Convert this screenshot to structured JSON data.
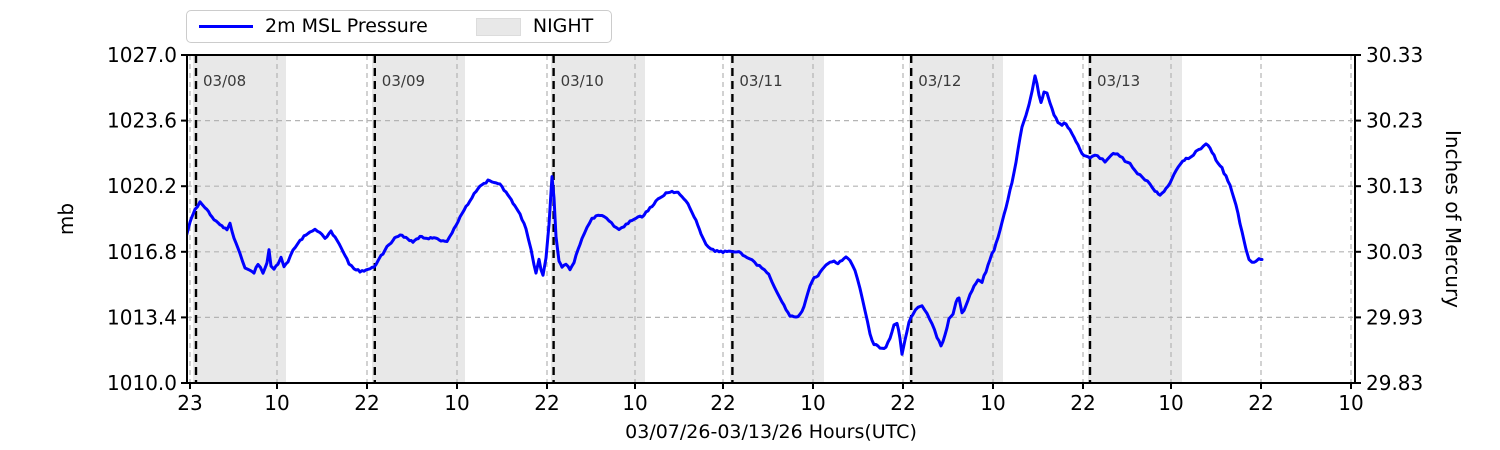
{
  "chart_data": {
    "type": "line",
    "title": "",
    "xlabel": "03/07/26-03/13/26  Hours(UTC)",
    "x_unit": "hours since 03/08 00:00 UTC",
    "ylabel_left": "mb",
    "ylabel_right": "Inches of Mercury",
    "xlim": [
      -1.21,
      155.57
    ],
    "ylim_left": [
      1010.0,
      1027.0
    ],
    "ylim_right": [
      29.83,
      30.33
    ],
    "grid": true,
    "colors": {
      "line": "#0000ff",
      "night": "#e8e8e8",
      "grid": "#b4b4b4",
      "spine": "#000000",
      "day_label": "#3a3a3a"
    },
    "y_left_ticks": [
      1010.0,
      1013.4,
      1016.8,
      1020.2,
      1023.6,
      1027.0
    ],
    "y_left_tick_labels": [
      "1010.0",
      "1013.4",
      "1016.8",
      "1020.2",
      "1023.6",
      "1027.0"
    ],
    "y_right_ticks": [
      29.83,
      29.93,
      30.03,
      30.13,
      30.23,
      30.33
    ],
    "y_right_tick_labels": [
      "29.83",
      "29.93",
      "30.03",
      "30.13",
      "30.23",
      "30.33"
    ],
    "x_ticks": [
      {
        "t": -0.81,
        "label": "23"
      },
      {
        "t": 10.87,
        "label": "10"
      },
      {
        "t": 22.95,
        "label": "22"
      },
      {
        "t": 35.03,
        "label": "10"
      },
      {
        "t": 47.11,
        "label": "22"
      },
      {
        "t": 58.93,
        "label": "10"
      },
      {
        "t": 70.74,
        "label": "22"
      },
      {
        "t": 82.82,
        "label": "10"
      },
      {
        "t": 94.9,
        "label": "22"
      },
      {
        "t": 106.98,
        "label": "10"
      },
      {
        "t": 119.06,
        "label": "22"
      },
      {
        "t": 130.87,
        "label": "10"
      },
      {
        "t": 142.95,
        "label": "22"
      },
      {
        "t": 155.03,
        "label": "10"
      }
    ],
    "day_lines": [
      {
        "t": 0,
        "label": "03/08"
      },
      {
        "t": 24,
        "label": "03/09"
      },
      {
        "t": 48,
        "label": "03/10"
      },
      {
        "t": 72,
        "label": "03/11"
      },
      {
        "t": 96,
        "label": "03/12"
      },
      {
        "t": 120,
        "label": "03/13"
      }
    ],
    "night_bands": [
      [
        -0.4,
        12.08
      ],
      [
        23.62,
        36.11
      ],
      [
        47.65,
        60.27
      ],
      [
        71.68,
        84.3
      ],
      [
        95.7,
        108.32
      ],
      [
        119.73,
        132.35
      ]
    ],
    "legend": [
      {
        "label": "2m MSL Pressure",
        "swatch": "line",
        "color": "#0000ff"
      },
      {
        "label": "NIGHT",
        "swatch": "patch",
        "color": "#e8e8e8"
      }
    ],
    "series": [
      {
        "name": "2m MSL Pressure",
        "units": "mb",
        "points": [
          [
            -1.48,
            1017.35
          ],
          [
            -0.81,
            1018.3
          ],
          [
            -0.13,
            1019.0
          ],
          [
            0.54,
            1019.35
          ],
          [
            1.21,
            1019.1
          ],
          [
            2.15,
            1018.6
          ],
          [
            3.22,
            1018.2
          ],
          [
            4.16,
            1017.95
          ],
          [
            4.56,
            1018.3
          ],
          [
            5.1,
            1017.5
          ],
          [
            5.91,
            1016.7
          ],
          [
            6.58,
            1016.0
          ],
          [
            7.25,
            1015.8
          ],
          [
            7.79,
            1015.75
          ],
          [
            8.32,
            1016.15
          ],
          [
            8.99,
            1015.7
          ],
          [
            9.53,
            1016.2
          ],
          [
            9.8,
            1016.95
          ],
          [
            10.07,
            1016.1
          ],
          [
            10.47,
            1015.9
          ],
          [
            11.01,
            1016.2
          ],
          [
            11.41,
            1016.5
          ],
          [
            11.81,
            1016.05
          ],
          [
            12.35,
            1016.3
          ],
          [
            13.02,
            1016.9
          ],
          [
            13.69,
            1017.25
          ],
          [
            14.5,
            1017.6
          ],
          [
            15.3,
            1017.85
          ],
          [
            15.97,
            1017.95
          ],
          [
            16.64,
            1017.8
          ],
          [
            17.32,
            1017.5
          ],
          [
            18.12,
            1017.85
          ],
          [
            18.93,
            1017.4
          ],
          [
            19.73,
            1016.8
          ],
          [
            20.54,
            1016.2
          ],
          [
            21.21,
            1015.95
          ],
          [
            22.01,
            1015.8
          ],
          [
            22.82,
            1015.85
          ],
          [
            23.62,
            1015.95
          ],
          [
            24.16,
            1016.15
          ],
          [
            24.83,
            1016.6
          ],
          [
            25.64,
            1017.05
          ],
          [
            26.44,
            1017.4
          ],
          [
            27.38,
            1017.7
          ],
          [
            28.19,
            1017.5
          ],
          [
            29.13,
            1017.3
          ],
          [
            30.07,
            1017.6
          ],
          [
            31.01,
            1017.45
          ],
          [
            31.95,
            1017.55
          ],
          [
            32.89,
            1017.4
          ],
          [
            33.69,
            1017.35
          ],
          [
            34.36,
            1017.8
          ],
          [
            35.17,
            1018.35
          ],
          [
            35.97,
            1018.95
          ],
          [
            36.78,
            1019.45
          ],
          [
            37.58,
            1019.95
          ],
          [
            38.39,
            1020.3
          ],
          [
            39.19,
            1020.5
          ],
          [
            40.0,
            1020.4
          ],
          [
            40.81,
            1020.3
          ],
          [
            41.61,
            1019.9
          ],
          [
            42.55,
            1019.35
          ],
          [
            43.49,
            1018.75
          ],
          [
            44.3,
            1018.0
          ],
          [
            44.97,
            1016.9
          ],
          [
            45.37,
            1016.1
          ],
          [
            45.64,
            1015.7
          ],
          [
            46.04,
            1016.35
          ],
          [
            46.31,
            1015.9
          ],
          [
            46.58,
            1015.6
          ],
          [
            46.98,
            1016.5
          ],
          [
            47.38,
            1018.2
          ],
          [
            47.79,
            1020.7
          ],
          [
            48.05,
            1019.6
          ],
          [
            48.32,
            1017.6
          ],
          [
            48.72,
            1016.3
          ],
          [
            49.13,
            1016.0
          ],
          [
            49.66,
            1016.15
          ],
          [
            50.2,
            1015.9
          ],
          [
            50.74,
            1016.25
          ],
          [
            51.28,
            1016.9
          ],
          [
            51.81,
            1017.5
          ],
          [
            52.48,
            1018.1
          ],
          [
            53.15,
            1018.5
          ],
          [
            53.96,
            1018.7
          ],
          [
            54.77,
            1018.65
          ],
          [
            55.44,
            1018.4
          ],
          [
            56.11,
            1018.15
          ],
          [
            56.78,
            1017.95
          ],
          [
            57.45,
            1018.1
          ],
          [
            58.26,
            1018.4
          ],
          [
            59.06,
            1018.55
          ],
          [
            59.87,
            1018.65
          ],
          [
            60.67,
            1018.9
          ],
          [
            61.48,
            1019.3
          ],
          [
            62.28,
            1019.65
          ],
          [
            63.09,
            1019.85
          ],
          [
            63.89,
            1019.95
          ],
          [
            64.7,
            1019.85
          ],
          [
            65.5,
            1019.55
          ],
          [
            66.31,
            1019.1
          ],
          [
            67.11,
            1018.4
          ],
          [
            67.79,
            1017.7
          ],
          [
            68.46,
            1017.2
          ],
          [
            69.13,
            1016.95
          ],
          [
            69.93,
            1016.85
          ],
          [
            70.74,
            1016.8
          ],
          [
            71.54,
            1016.85
          ],
          [
            72.35,
            1016.8
          ],
          [
            73.15,
            1016.75
          ],
          [
            73.96,
            1016.55
          ],
          [
            74.63,
            1016.4
          ],
          [
            75.3,
            1016.1
          ],
          [
            75.97,
            1016.0
          ],
          [
            76.64,
            1015.75
          ],
          [
            77.32,
            1015.25
          ],
          [
            77.99,
            1014.7
          ],
          [
            78.66,
            1014.2
          ],
          [
            79.19,
            1013.8
          ],
          [
            79.73,
            1013.5
          ],
          [
            80.27,
            1013.4
          ],
          [
            80.81,
            1013.45
          ],
          [
            81.34,
            1013.7
          ],
          [
            81.88,
            1014.3
          ],
          [
            82.42,
            1015.0
          ],
          [
            82.95,
            1015.45
          ],
          [
            83.49,
            1015.55
          ],
          [
            84.03,
            1015.9
          ],
          [
            84.56,
            1016.1
          ],
          [
            85.1,
            1016.2
          ],
          [
            85.64,
            1016.3
          ],
          [
            86.17,
            1016.2
          ],
          [
            86.71,
            1016.4
          ],
          [
            87.25,
            1016.5
          ],
          [
            87.79,
            1016.4
          ],
          [
            88.46,
            1015.9
          ],
          [
            89.13,
            1014.9
          ],
          [
            89.8,
            1013.8
          ],
          [
            90.47,
            1012.5
          ],
          [
            91.01,
            1012.05
          ],
          [
            91.54,
            1011.9
          ],
          [
            92.08,
            1011.75
          ],
          [
            92.62,
            1011.85
          ],
          [
            93.15,
            1012.3
          ],
          [
            93.69,
            1013.0
          ],
          [
            94.09,
            1013.1
          ],
          [
            94.5,
            1012.3
          ],
          [
            94.77,
            1011.45
          ],
          [
            95.17,
            1012.2
          ],
          [
            95.7,
            1013.1
          ],
          [
            96.24,
            1013.6
          ],
          [
            96.91,
            1013.95
          ],
          [
            97.45,
            1014.05
          ],
          [
            98.12,
            1013.6
          ],
          [
            98.79,
            1013.1
          ],
          [
            99.46,
            1012.35
          ],
          [
            100.0,
            1011.95
          ],
          [
            100.54,
            1012.45
          ],
          [
            101.07,
            1013.3
          ],
          [
            101.61,
            1013.6
          ],
          [
            102.01,
            1014.2
          ],
          [
            102.42,
            1014.4
          ],
          [
            102.82,
            1013.65
          ],
          [
            103.36,
            1014.0
          ],
          [
            103.89,
            1014.6
          ],
          [
            104.43,
            1015.0
          ],
          [
            104.97,
            1015.3
          ],
          [
            105.5,
            1015.25
          ],
          [
            106.04,
            1015.8
          ],
          [
            106.58,
            1016.4
          ],
          [
            107.11,
            1016.9
          ],
          [
            107.65,
            1017.5
          ],
          [
            108.19,
            1018.3
          ],
          [
            108.72,
            1019.1
          ],
          [
            109.26,
            1020.0
          ],
          [
            109.8,
            1020.9
          ],
          [
            110.34,
            1022.1
          ],
          [
            110.87,
            1023.3
          ],
          [
            111.41,
            1023.9
          ],
          [
            111.81,
            1024.4
          ],
          [
            112.21,
            1025.1
          ],
          [
            112.62,
            1025.9
          ],
          [
            112.89,
            1025.5
          ],
          [
            113.15,
            1024.9
          ],
          [
            113.42,
            1024.55
          ],
          [
            113.83,
            1025.1
          ],
          [
            114.23,
            1025.05
          ],
          [
            114.63,
            1024.5
          ],
          [
            115.17,
            1023.9
          ],
          [
            115.7,
            1023.5
          ],
          [
            116.24,
            1023.4
          ],
          [
            116.78,
            1023.45
          ],
          [
            117.32,
            1023.1
          ],
          [
            117.85,
            1022.7
          ],
          [
            118.39,
            1022.3
          ],
          [
            118.93,
            1021.9
          ],
          [
            119.46,
            1021.75
          ],
          [
            120.0,
            1021.7
          ],
          [
            120.67,
            1021.8
          ],
          [
            121.34,
            1021.65
          ],
          [
            122.01,
            1021.5
          ],
          [
            122.68,
            1021.8
          ],
          [
            123.36,
            1021.9
          ],
          [
            124.03,
            1021.75
          ],
          [
            124.7,
            1021.5
          ],
          [
            125.37,
            1021.35
          ],
          [
            126.04,
            1021.0
          ],
          [
            126.71,
            1020.8
          ],
          [
            127.38,
            1020.55
          ],
          [
            128.05,
            1020.3
          ],
          [
            128.72,
            1020.0
          ],
          [
            129.4,
            1019.75
          ],
          [
            129.93,
            1019.9
          ],
          [
            130.47,
            1020.2
          ],
          [
            131.01,
            1020.6
          ],
          [
            131.54,
            1021.0
          ],
          [
            132.21,
            1021.4
          ],
          [
            132.89,
            1021.6
          ],
          [
            133.56,
            1021.7
          ],
          [
            134.23,
            1022.0
          ],
          [
            134.9,
            1022.2
          ],
          [
            135.57,
            1022.4
          ],
          [
            136.11,
            1022.2
          ],
          [
            136.64,
            1021.8
          ],
          [
            137.18,
            1021.4
          ],
          [
            137.72,
            1021.1
          ],
          [
            138.26,
            1020.7
          ],
          [
            138.79,
            1020.2
          ],
          [
            139.33,
            1019.6
          ],
          [
            139.87,
            1018.8
          ],
          [
            140.4,
            1017.8
          ],
          [
            140.94,
            1016.9
          ],
          [
            141.34,
            1016.4
          ],
          [
            141.74,
            1016.25
          ],
          [
            142.28,
            1016.25
          ],
          [
            142.68,
            1016.45
          ],
          [
            143.09,
            1016.4
          ]
        ]
      }
    ]
  }
}
